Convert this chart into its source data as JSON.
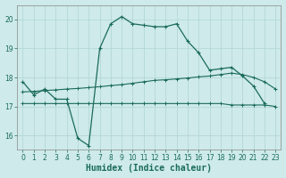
{
  "line1_x": [
    0,
    1,
    2,
    3,
    4,
    5,
    6,
    7,
    8,
    9,
    10,
    11,
    12,
    13,
    14,
    15,
    16,
    17,
    18,
    19,
    20,
    21,
    22
  ],
  "line1_y": [
    17.85,
    17.4,
    17.6,
    17.25,
    17.25,
    15.9,
    15.65,
    19.0,
    19.85,
    20.1,
    19.85,
    19.8,
    19.75,
    19.75,
    19.85,
    19.25,
    18.85,
    18.25,
    18.3,
    18.35,
    18.05,
    17.7,
    17.1
  ],
  "line2_x": [
    0,
    1,
    2,
    3,
    4,
    5,
    6,
    7,
    8,
    9,
    10,
    11,
    12,
    13,
    14,
    15,
    16,
    17,
    18,
    19,
    20,
    21,
    22,
    23
  ],
  "line2_y": [
    17.5,
    17.52,
    17.55,
    17.57,
    17.6,
    17.62,
    17.65,
    17.68,
    17.72,
    17.75,
    17.8,
    17.85,
    17.9,
    17.92,
    17.95,
    17.98,
    18.02,
    18.05,
    18.1,
    18.15,
    18.1,
    18.0,
    17.85,
    17.6
  ],
  "line3_x": [
    0,
    1,
    2,
    3,
    4,
    5,
    6,
    7,
    8,
    9,
    10,
    11,
    12,
    13,
    14,
    15,
    16,
    17,
    18,
    19,
    20,
    21,
    22,
    23
  ],
  "line3_y": [
    17.1,
    17.1,
    17.1,
    17.1,
    17.1,
    17.1,
    17.1,
    17.1,
    17.1,
    17.1,
    17.1,
    17.1,
    17.1,
    17.1,
    17.1,
    17.1,
    17.1,
    17.1,
    17.1,
    17.05,
    17.05,
    17.05,
    17.05,
    17.0
  ],
  "xlim": [
    -0.5,
    23.5
  ],
  "ylim": [
    15.5,
    20.5
  ],
  "yticks": [
    16,
    17,
    18,
    19,
    20
  ],
  "xticks": [
    0,
    1,
    2,
    3,
    4,
    5,
    6,
    7,
    8,
    9,
    10,
    11,
    12,
    13,
    14,
    15,
    16,
    17,
    18,
    19,
    20,
    21,
    22,
    23
  ],
  "xlabel": "Humidex (Indice chaleur)",
  "bg_color": "#ceeaea",
  "grid_color": "#b0d4d4",
  "line_color": "#1a6b5a",
  "tick_fontsize": 5.5,
  "xlabel_fontsize": 7
}
